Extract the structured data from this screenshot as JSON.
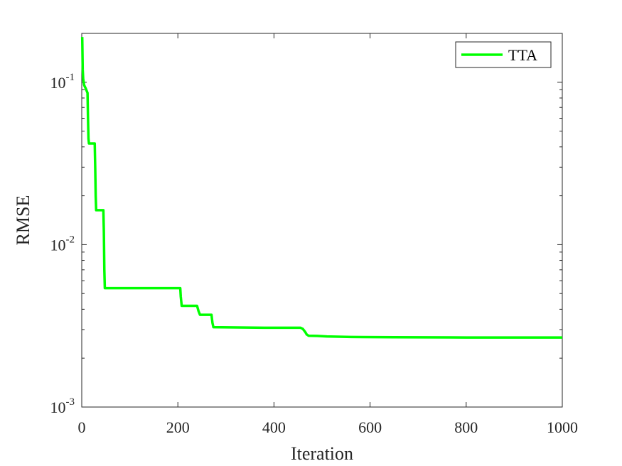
{
  "chart_data": {
    "type": "line",
    "title": "",
    "xlabel": "Iteration",
    "ylabel": "RMSE",
    "xscale": "linear",
    "yscale": "log",
    "xlim": [
      0,
      1000
    ],
    "ylim": [
      0.001,
      0.2
    ],
    "xticks": [
      0,
      200,
      400,
      600,
      800,
      1000
    ],
    "xtick_labels": [
      "0",
      "200",
      "400",
      "600",
      "800",
      "1000"
    ],
    "yticks": [
      0.001,
      0.01,
      0.1
    ],
    "ytick_labels": [
      {
        "base": "10",
        "exp": "-3"
      },
      {
        "base": "10",
        "exp": "-2"
      },
      {
        "base": "10",
        "exp": "-1"
      }
    ],
    "grid": false,
    "legend": {
      "placement": "top-right",
      "entries": [
        "TTA"
      ]
    },
    "series": [
      {
        "name": "TTA",
        "color": "#00ff00",
        "x": [
          1,
          2,
          3,
          5,
          8,
          12,
          13,
          14,
          15,
          27,
          28,
          29,
          30,
          45,
          46,
          47,
          48,
          205,
          206,
          208,
          240,
          243,
          246,
          270,
          272,
          274,
          380,
          455,
          460,
          465,
          468,
          472,
          490,
          510,
          560,
          650,
          800,
          1000
        ],
        "y": [
          0.19,
          0.12,
          0.105,
          0.096,
          0.092,
          0.086,
          0.06,
          0.045,
          0.042,
          0.042,
          0.03,
          0.02,
          0.0163,
          0.0163,
          0.012,
          0.007,
          0.0054,
          0.0054,
          0.0048,
          0.0042,
          0.0042,
          0.0039,
          0.0037,
          0.0037,
          0.0033,
          0.0031,
          0.00308,
          0.00308,
          0.00303,
          0.0029,
          0.0028,
          0.00275,
          0.00274,
          0.00272,
          0.0027,
          0.00269,
          0.00268,
          0.00268
        ]
      }
    ]
  }
}
